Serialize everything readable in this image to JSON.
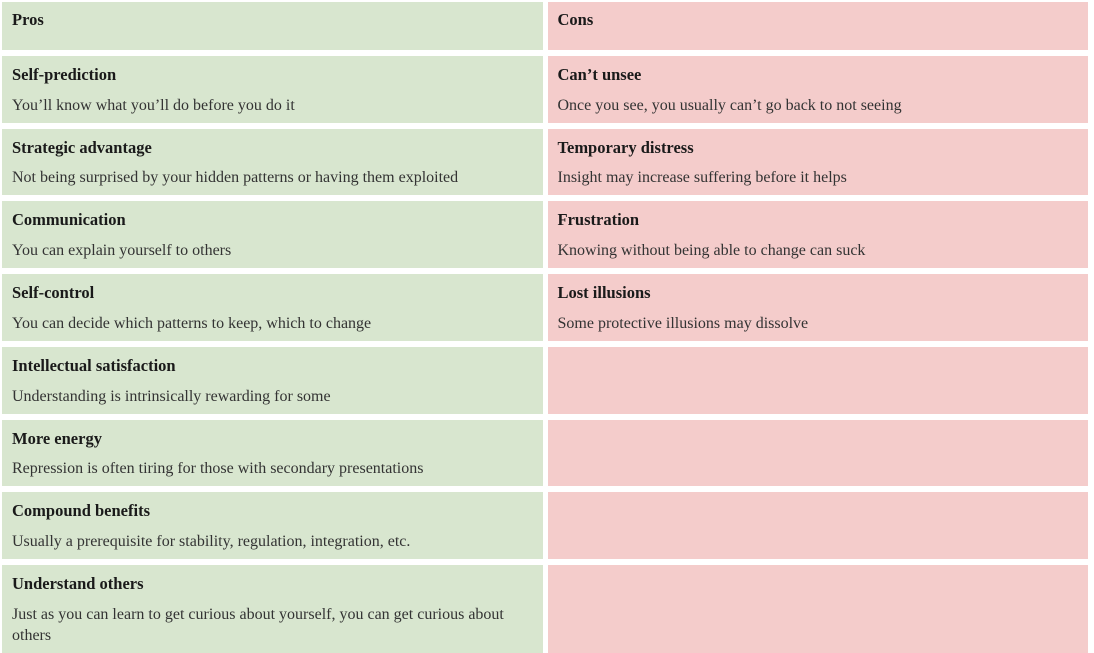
{
  "colors": {
    "pro_bg": "#d8e6cf",
    "con_bg": "#f4cccb",
    "gap_bg": "#ffffff",
    "title_text": "#1a1a1a",
    "body_text": "#333333"
  },
  "table": {
    "columns": [
      {
        "header": "Pros"
      },
      {
        "header": "Cons"
      }
    ],
    "rows": [
      {
        "pro": {
          "title": "Self-prediction",
          "body": "You’ll know what you’ll do before you do it"
        },
        "con": {
          "title": "Can’t unsee",
          "body": "Once you see, you usually can’t go back to not seeing"
        }
      },
      {
        "pro": {
          "title": "Strategic advantage",
          "body": "Not being surprised by your hidden patterns or having them exploited"
        },
        "con": {
          "title": "Temporary distress",
          "body": "Insight may increase suffering before it helps"
        }
      },
      {
        "pro": {
          "title": "Communication",
          "body": "You can explain yourself to others"
        },
        "con": {
          "title": "Frustration",
          "body": "Knowing without being able to change can suck"
        }
      },
      {
        "pro": {
          "title": "Self-control",
          "body": "You can decide which patterns to keep, which to change"
        },
        "con": {
          "title": "Lost illusions",
          "body": "Some protective illusions may dissolve"
        }
      },
      {
        "pro": {
          "title": "Intellectual satisfaction",
          "body": "Understanding is intrinsically rewarding for some"
        },
        "con": null
      },
      {
        "pro": {
          "title": "More energy",
          "body": "Repression is often tiring for those with secondary presentations"
        },
        "con": null
      },
      {
        "pro": {
          "title": "Compound benefits",
          "body": "Usually a prerequisite for stability, regulation, integration, etc."
        },
        "con": null
      },
      {
        "pro": {
          "title": "Understand others",
          "body": "Just as you can learn to get curious about yourself, you can get curious about others"
        },
        "con": null
      }
    ]
  }
}
